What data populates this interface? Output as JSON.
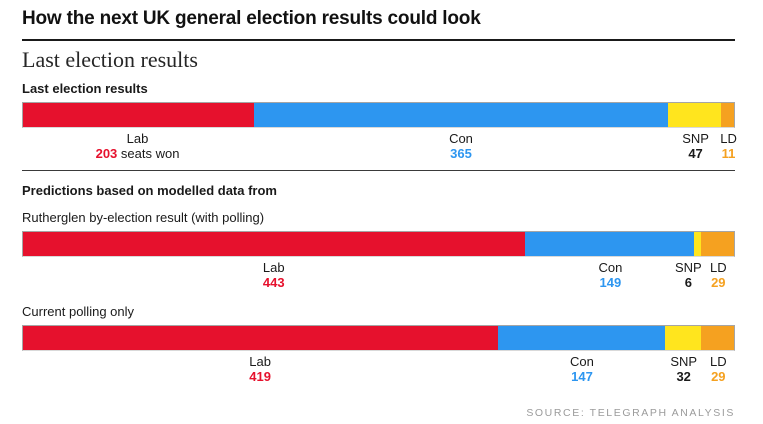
{
  "page": {
    "title": "How the next UK general election results could look",
    "section_heading": "Last election results",
    "predictions_heading": "Predictions based on modelled data from",
    "source": "SOURCE: TELEGRAPH ANALYSIS"
  },
  "colors": {
    "lab": "#E6112D",
    "con": "#2D96F0",
    "snp": "#FFE51E",
    "ld": "#F5A120",
    "dark": "#1A1A1A"
  },
  "chart_data": [
    {
      "type": "bar",
      "variant": "horizontal-stacked",
      "title": "Last election results",
      "title_bold": true,
      "unit": "seats",
      "total_seats": 626,
      "segments": [
        {
          "party": "Lab",
          "seats": 203,
          "fill": "lab",
          "value_color": "lab",
          "value_suffix": " seats won"
        },
        {
          "party": "Con",
          "seats": 365,
          "fill": "con",
          "value_color": "con",
          "value_suffix": ""
        },
        {
          "party": "SNP",
          "seats": 47,
          "fill": "snp",
          "value_color": "dark",
          "value_suffix": ""
        },
        {
          "party": "LD",
          "seats": 11,
          "fill": "ld",
          "value_color": "ld",
          "value_suffix": ""
        }
      ]
    },
    {
      "type": "bar",
      "variant": "horizontal-stacked",
      "title": "Rutherglen by-election result (with polling)",
      "title_bold": false,
      "unit": "seats",
      "total_seats": 627,
      "segments": [
        {
          "party": "Lab",
          "seats": 443,
          "fill": "lab",
          "value_color": "lab",
          "value_suffix": ""
        },
        {
          "party": "Con",
          "seats": 149,
          "fill": "con",
          "value_color": "con",
          "value_suffix": ""
        },
        {
          "party": "SNP",
          "seats": 6,
          "fill": "snp",
          "value_color": "dark",
          "value_suffix": ""
        },
        {
          "party": "LD",
          "seats": 29,
          "fill": "ld",
          "value_color": "ld",
          "value_suffix": ""
        }
      ]
    },
    {
      "type": "bar",
      "variant": "horizontal-stacked",
      "title": "Current polling only",
      "title_bold": false,
      "unit": "seats",
      "total_seats": 627,
      "segments": [
        {
          "party": "Lab",
          "seats": 419,
          "fill": "lab",
          "value_color": "lab",
          "value_suffix": ""
        },
        {
          "party": "Con",
          "seats": 147,
          "fill": "con",
          "value_color": "con",
          "value_suffix": ""
        },
        {
          "party": "SNP",
          "seats": 32,
          "fill": "snp",
          "value_color": "dark",
          "value_suffix": ""
        },
        {
          "party": "LD",
          "seats": 29,
          "fill": "ld",
          "value_color": "ld",
          "value_suffix": ""
        }
      ]
    }
  ]
}
